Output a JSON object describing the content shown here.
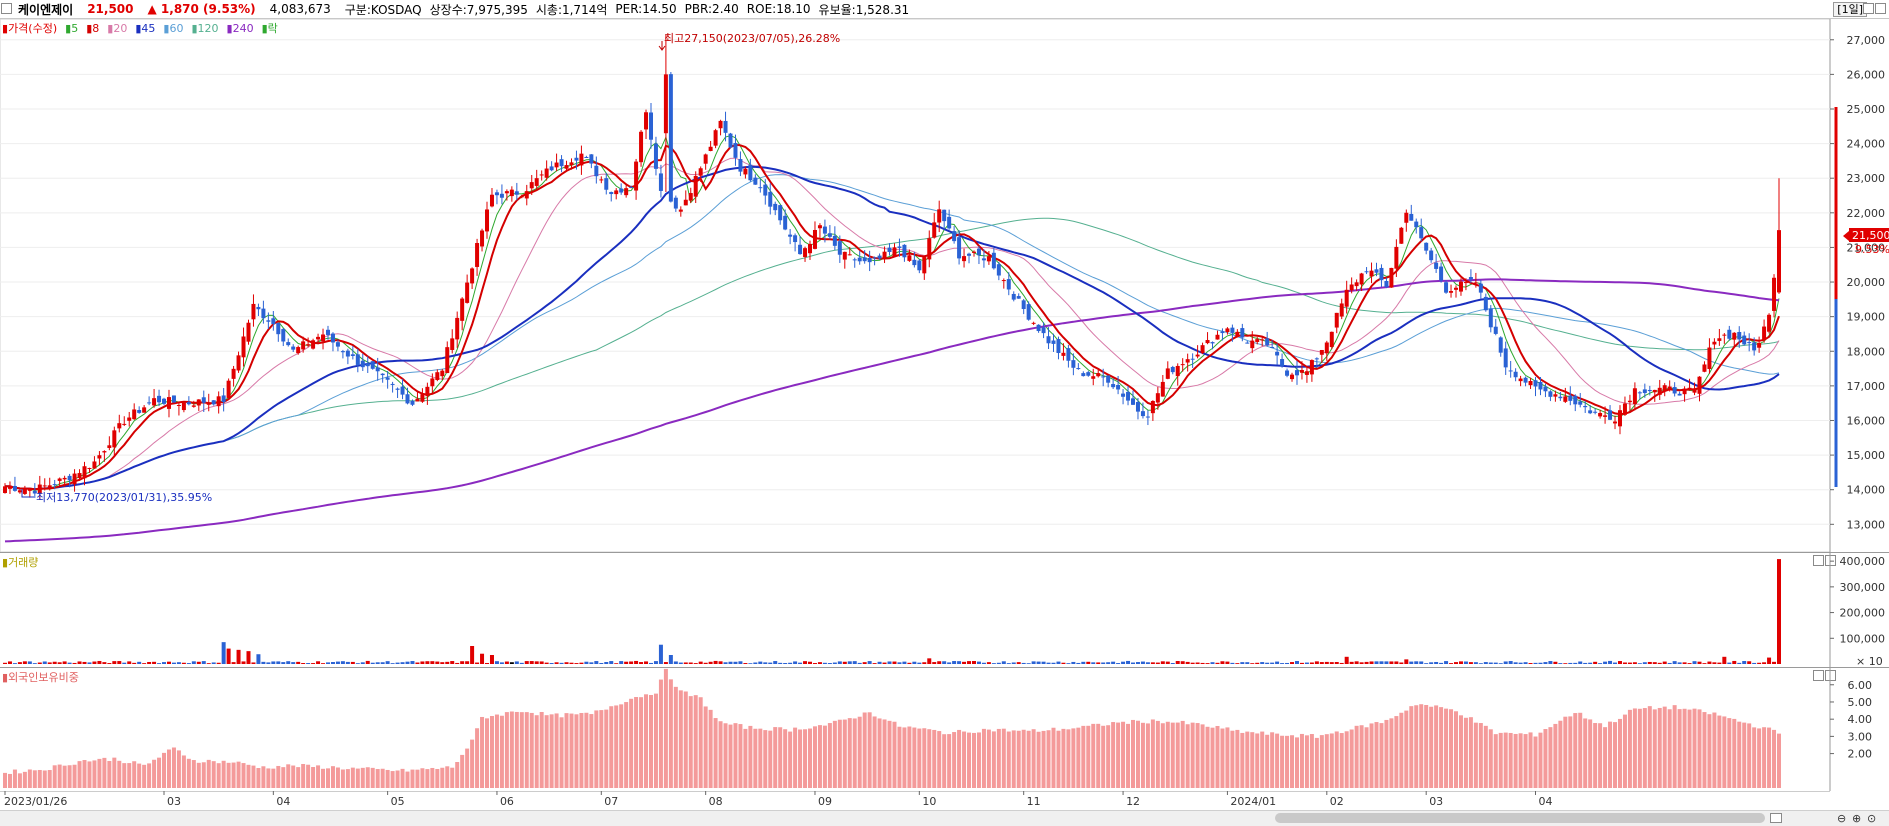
{
  "header": {
    "name": "케이엔제이",
    "price": "21,500",
    "change": "▲ 1,870 (9.53%)",
    "volume": "4,083,673",
    "market": "구분:KOSDAQ",
    "shares": "상장수:7,975,395",
    "mcap": "시총:1,714억",
    "per": "PER:14.50",
    "pbr": "PBR:2.40",
    "roe": "ROE:18.10",
    "reserve": "유보율:1,528.31",
    "period": "[1일]"
  },
  "legend": {
    "price": "가격(수정)",
    "ma5": "5",
    "ma8": "8",
    "ma20": "20",
    "ma45": "45",
    "ma60": "60",
    "ma120": "120",
    "ma240": "240",
    "lak": "락"
  },
  "colors": {
    "up": "#e00000",
    "down": "#2a62d4",
    "ma5": "#2fa82f",
    "ma8": "#d40000",
    "ma20": "#d87aa8",
    "ma45": "#1a2fbf",
    "ma60": "#5b9fd6",
    "ma120": "#55b090",
    "ma240": "#8a2ac0",
    "foreign": "#f49a9a"
  },
  "annotations": {
    "high": "최고27,150(2023/07/05),26.28%",
    "low": "최저13,770(2023/01/31),35.95%"
  },
  "price_badge": {
    "price": "21,500",
    "pct": "9.53%"
  },
  "volume_panel": {
    "title": "거래량",
    "unit": "× 10"
  },
  "foreign_panel": {
    "title": "외국인보유비중"
  },
  "chart_data": [
    {
      "type": "candlestick",
      "title": "가격(수정)",
      "ylim": [
        12200,
        27600
      ],
      "yticks": [
        "13,000",
        "14,000",
        "15,000",
        "16,000",
        "17,000",
        "18,000",
        "19,000",
        "20,000",
        "21,000",
        "22,000",
        "23,000",
        "24,000",
        "25,000",
        "26,000",
        "27,000"
      ],
      "xticks": [
        "2023/01/26",
        "03",
        "04",
        "05",
        "06",
        "07",
        "08",
        "09",
        "10",
        "11",
        "12",
        "2024/01",
        "02",
        "03",
        "04"
      ],
      "close_keyframes": [
        [
          0,
          14100
        ],
        [
          6,
          14000
        ],
        [
          12,
          14300
        ],
        [
          18,
          14800
        ],
        [
          24,
          16000
        ],
        [
          30,
          16600
        ],
        [
          36,
          16500
        ],
        [
          44,
          16600
        ],
        [
          50,
          19300
        ],
        [
          54,
          18800
        ],
        [
          58,
          18000
        ],
        [
          64,
          18500
        ],
        [
          70,
          17800
        ],
        [
          76,
          17200
        ],
        [
          82,
          16500
        ],
        [
          88,
          17500
        ],
        [
          94,
          20500
        ],
        [
          98,
          22500
        ],
        [
          104,
          22600
        ],
        [
          110,
          23300
        ],
        [
          116,
          23700
        ],
        [
          122,
          22600
        ],
        [
          126,
          22800
        ],
        [
          129,
          25000
        ],
        [
          132,
          22600
        ],
        [
          136,
          22100
        ],
        [
          140,
          23300
        ],
        [
          144,
          24600
        ],
        [
          148,
          23300
        ],
        [
          152,
          22800
        ],
        [
          156,
          21800
        ],
        [
          160,
          20800
        ],
        [
          164,
          21600
        ],
        [
          168,
          20800
        ],
        [
          174,
          20500
        ],
        [
          180,
          21000
        ],
        [
          184,
          20300
        ],
        [
          188,
          22100
        ],
        [
          192,
          20800
        ],
        [
          198,
          20700
        ],
        [
          204,
          19400
        ],
        [
          210,
          18300
        ],
        [
          216,
          17400
        ],
        [
          222,
          17200
        ],
        [
          228,
          16300
        ],
        [
          230,
          16200
        ],
        [
          234,
          17400
        ],
        [
          240,
          18000
        ],
        [
          246,
          18700
        ],
        [
          250,
          18300
        ],
        [
          254,
          18200
        ],
        [
          258,
          17400
        ],
        [
          262,
          17400
        ],
        [
          266,
          18300
        ],
        [
          270,
          19700
        ],
        [
          274,
          20400
        ],
        [
          278,
          19900
        ],
        [
          282,
          22100
        ],
        [
          286,
          20900
        ],
        [
          290,
          19800
        ],
        [
          296,
          20000
        ],
        [
          302,
          17600
        ],
        [
          308,
          16900
        ],
        [
          314,
          16700
        ],
        [
          320,
          16200
        ],
        [
          324,
          16100
        ],
        [
          328,
          16900
        ],
        [
          334,
          16900
        ],
        [
          340,
          16800
        ],
        [
          344,
          18400
        ],
        [
          348,
          18500
        ],
        [
          352,
          18000
        ],
        [
          355,
          19000
        ],
        [
          357,
          21500
        ]
      ],
      "high": 27150,
      "low": 13770
    },
    {
      "type": "bar",
      "title": "거래량",
      "ylim": [
        0,
        420000
      ],
      "yticks": [
        "100,000",
        "200,000",
        "300,000",
        "400,000"
      ],
      "spikes": [
        [
          44,
          85
        ],
        [
          45,
          60
        ],
        [
          47,
          55
        ],
        [
          49,
          50
        ],
        [
          51,
          38
        ],
        [
          94,
          70
        ],
        [
          96,
          40
        ],
        [
          98,
          35
        ],
        [
          132,
          75
        ],
        [
          134,
          35
        ],
        [
          186,
          22
        ],
        [
          270,
          28
        ],
        [
          282,
          18
        ],
        [
          346,
          28
        ],
        [
          355,
          25
        ],
        [
          357,
          408
        ]
      ]
    },
    {
      "type": "bar",
      "title": "외국인보유비중",
      "ylim": [
        0,
        6.8
      ],
      "yticks": [
        "2.00",
        "3.00",
        "4.00",
        "5.00",
        "6.00"
      ],
      "keyframes": [
        [
          0,
          0.9
        ],
        [
          8,
          1.1
        ],
        [
          16,
          1.6
        ],
        [
          22,
          1.7
        ],
        [
          28,
          1.3
        ],
        [
          34,
          2.3
        ],
        [
          38,
          1.6
        ],
        [
          46,
          1.5
        ],
        [
          52,
          1.2
        ],
        [
          58,
          1.3
        ],
        [
          66,
          1.2
        ],
        [
          72,
          1.1
        ],
        [
          80,
          1.0
        ],
        [
          90,
          1.2
        ],
        [
          94,
          2.7
        ],
        [
          96,
          4.1
        ],
        [
          104,
          4.5
        ],
        [
          110,
          4.2
        ],
        [
          118,
          4.3
        ],
        [
          126,
          5.2
        ],
        [
          131,
          5.6
        ],
        [
          133,
          6.8
        ],
        [
          136,
          5.6
        ],
        [
          140,
          5.2
        ],
        [
          144,
          3.8
        ],
        [
          150,
          3.5
        ],
        [
          158,
          3.4
        ],
        [
          166,
          3.7
        ],
        [
          174,
          4.4
        ],
        [
          180,
          3.6
        ],
        [
          190,
          3.2
        ],
        [
          198,
          3.4
        ],
        [
          206,
          3.3
        ],
        [
          216,
          3.5
        ],
        [
          224,
          3.8
        ],
        [
          232,
          3.9
        ],
        [
          240,
          3.7
        ],
        [
          248,
          3.3
        ],
        [
          256,
          3.1
        ],
        [
          264,
          3.0
        ],
        [
          272,
          3.5
        ],
        [
          278,
          3.9
        ],
        [
          284,
          4.9
        ],
        [
          292,
          4.5
        ],
        [
          300,
          3.2
        ],
        [
          308,
          3.1
        ],
        [
          316,
          4.4
        ],
        [
          322,
          3.6
        ],
        [
          328,
          4.6
        ],
        [
          336,
          4.7
        ],
        [
          344,
          4.3
        ],
        [
          350,
          3.8
        ],
        [
          355,
          3.4
        ],
        [
          357,
          3.2
        ]
      ]
    }
  ]
}
